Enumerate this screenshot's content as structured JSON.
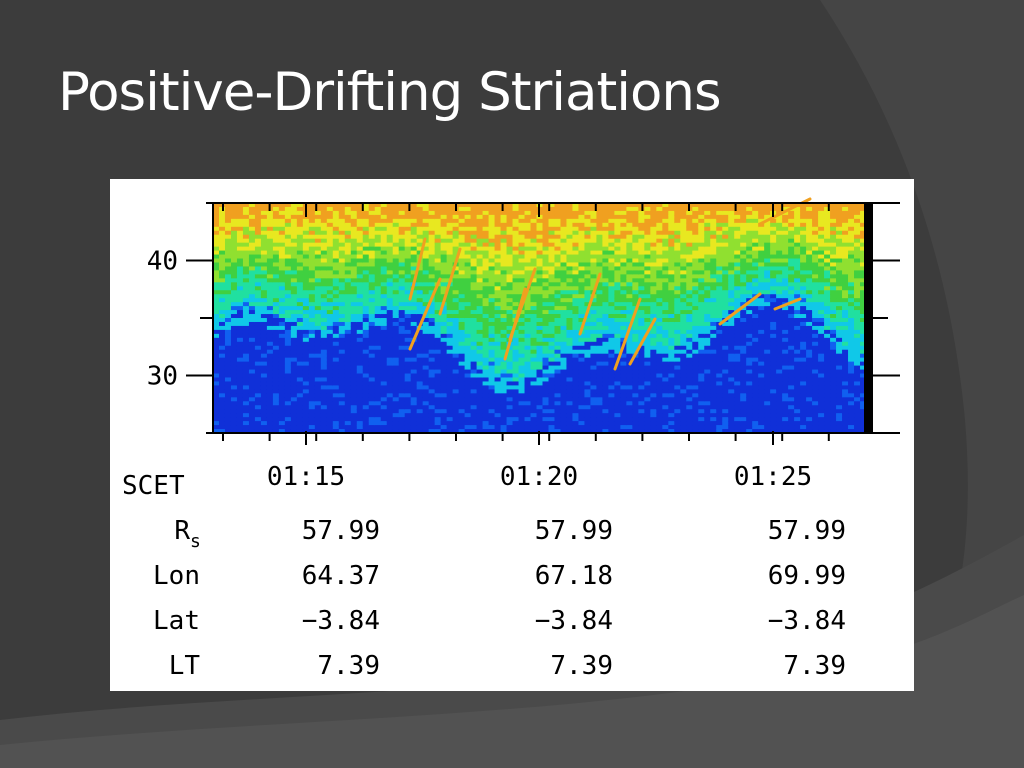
{
  "slide": {
    "title": "Positive-Drifting Striations"
  },
  "colors": {
    "background": "#3b3b3b",
    "panel": "#ffffff",
    "colormap": [
      "#1030d8",
      "#1060f0",
      "#10c8e8",
      "#20e0a0",
      "#40d040",
      "#90e030",
      "#e8e820",
      "#f0a020",
      "#e03020"
    ]
  },
  "chart_data": {
    "type": "heatmap",
    "title": "",
    "xlabel": "SCET",
    "ylabel": "",
    "x_ticks": [
      "01:15",
      "01:20",
      "01:25"
    ],
    "y_ticks": [
      "30",
      "40"
    ],
    "ylim": [
      25,
      45
    ],
    "grid": false,
    "legend": "none",
    "ephemeris": {
      "rows": [
        {
          "label": "R",
          "sub": "s",
          "values": [
            "57.99",
            "57.99",
            "57.99"
          ]
        },
        {
          "label": "Lon",
          "sub": "",
          "values": [
            "64.37",
            "67.18",
            "69.99"
          ]
        },
        {
          "label": "Lat",
          "sub": "",
          "values": [
            "−3.84",
            "−3.84",
            "−3.84"
          ]
        },
        {
          "label": "LT",
          "sub": "",
          "values": [
            "7.39",
            "7.39",
            "7.39"
          ]
        }
      ]
    }
  }
}
